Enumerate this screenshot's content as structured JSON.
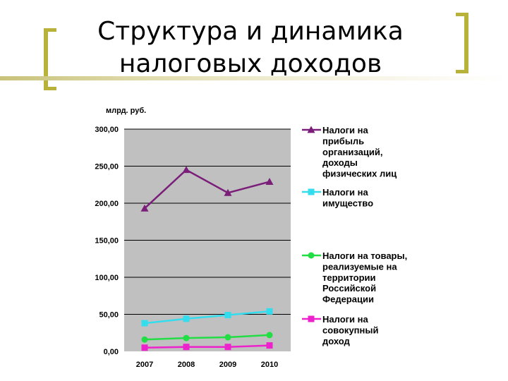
{
  "slide": {
    "title_lines": [
      "Структура и динамика",
      "налоговых доходов"
    ],
    "colors": {
      "accent": "#b9b23a"
    }
  },
  "chart_data": {
    "type": "line",
    "ylabel": "млрд. руб.",
    "xlabel": "",
    "x": [
      "2007",
      "2008",
      "2009",
      "2010"
    ],
    "ylim": [
      0,
      300
    ],
    "yticks": [
      "0,00",
      "50,00",
      "100,00",
      "150,00",
      "200,00",
      "250,00",
      "300,00"
    ],
    "ytick_values": [
      0,
      50,
      100,
      150,
      200,
      250,
      300
    ],
    "grid": "horizontal",
    "plot_background": "#c0c0c0",
    "legend_position": "right",
    "series": [
      {
        "name_lines": [
          "Налоги на",
          "прибыль",
          "организаций,",
          "доходы",
          "физических лиц"
        ],
        "values": [
          193,
          245,
          214,
          229
        ],
        "color": "#7a1e7a",
        "marker": "triangle"
      },
      {
        "name_lines": [
          "Налоги на",
          "имущество"
        ],
        "values": [
          38,
          44,
          49,
          54
        ],
        "color": "#33ddee",
        "marker": "square"
      },
      {
        "name_lines": [
          "Налоги на товары,",
          "реализуемые на",
          "территории",
          "Российской",
          "Федерации"
        ],
        "values": [
          16,
          18,
          19,
          22
        ],
        "color": "#22dd44",
        "marker": "circle"
      },
      {
        "name_lines": [
          "Налоги на",
          "совокупный",
          "доход"
        ],
        "values": [
          5,
          6,
          6,
          8
        ],
        "color": "#ee22cc",
        "marker": "square"
      }
    ]
  }
}
